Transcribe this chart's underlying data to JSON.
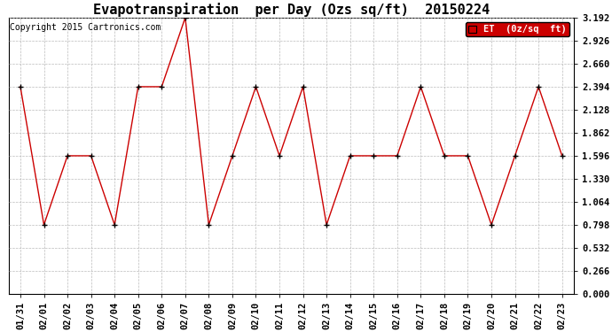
{
  "title": "Evapotranspiration  per Day (Ozs sq/ft)  20150224",
  "copyright": "Copyright 2015 Cartronics.com",
  "legend_label": "ET  (0z/sq  ft)",
  "dates": [
    "01/31",
    "02/01",
    "02/02",
    "02/03",
    "02/04",
    "02/05",
    "02/06",
    "02/07",
    "02/08",
    "02/09",
    "02/10",
    "02/11",
    "02/12",
    "02/13",
    "02/14",
    "02/15",
    "02/16",
    "02/17",
    "02/18",
    "02/19",
    "02/20",
    "02/21",
    "02/22",
    "02/23"
  ],
  "values": [
    2.394,
    0.798,
    1.596,
    1.596,
    0.798,
    2.394,
    2.394,
    3.192,
    0.798,
    1.596,
    2.394,
    1.596,
    2.394,
    0.798,
    1.596,
    1.596,
    1.596,
    2.394,
    1.596,
    1.596,
    0.798,
    1.596,
    2.394,
    1.596
  ],
  "line_color": "#cc0000",
  "marker_color": "#000000",
  "bg_color": "#ffffff",
  "grid_color": "#bbbbbb",
  "yticks": [
    0.0,
    0.266,
    0.532,
    0.798,
    1.064,
    1.33,
    1.596,
    1.862,
    2.128,
    2.394,
    2.66,
    2.926,
    3.192
  ],
  "ylim": [
    0.0,
    3.192
  ],
  "title_fontsize": 11,
  "tick_fontsize": 7.5,
  "legend_bg": "#cc0000",
  "legend_text_color": "#ffffff",
  "copyright_fontsize": 7
}
